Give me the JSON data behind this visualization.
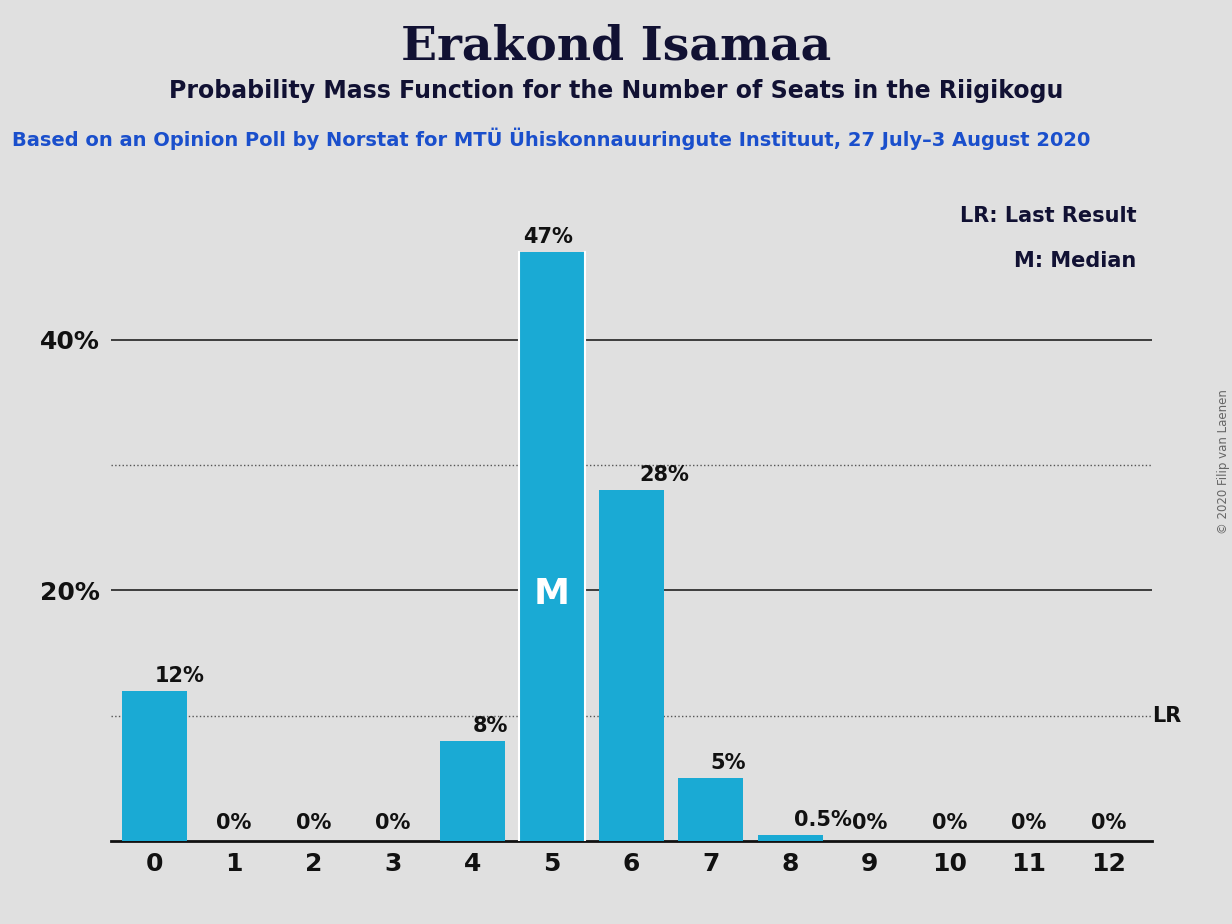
{
  "title": "Erakond Isamaa",
  "subtitle": "Probability Mass Function for the Number of Seats in the Riigikogu",
  "source_line": "Based on an Opinion Poll by Norstat for MTÜ Ühiskonnauuringute Instituut, 27 July–3 August 2020",
  "copyright": "© 2020 Filip van Laenen",
  "categories": [
    0,
    1,
    2,
    3,
    4,
    5,
    6,
    7,
    8,
    9,
    10,
    11,
    12
  ],
  "values": [
    12,
    0,
    0,
    0,
    8,
    47,
    28,
    5,
    0.5,
    0,
    0,
    0,
    0
  ],
  "bar_color": "#1aaad4",
  "background_color": "#e0e0e0",
  "plot_bg_color": "#e0e0e0",
  "bar_labels": [
    "12%",
    "0%",
    "0%",
    "0%",
    "8%",
    "47%",
    "28%",
    "5%",
    "0.5%",
    "0%",
    "0%",
    "0%",
    "0%"
  ],
  "median_bar": 5,
  "median_label": "M",
  "lr_label": "LR",
  "legend_lr": "LR: Last Result",
  "legend_m": "M: Median",
  "ylim": [
    0,
    52
  ],
  "solid_gridlines": [
    20,
    40
  ],
  "dotted_gridlines": [
    10,
    30
  ],
  "ytick_positions": [
    20,
    40
  ],
  "ytick_labels": [
    "20%",
    "40%"
  ],
  "title_fontsize": 34,
  "subtitle_fontsize": 17,
  "source_fontsize": 14,
  "bar_label_fontsize": 15,
  "median_fontsize": 26,
  "tick_fontsize": 18,
  "legend_fontsize": 15,
  "lr_fontsize": 15
}
